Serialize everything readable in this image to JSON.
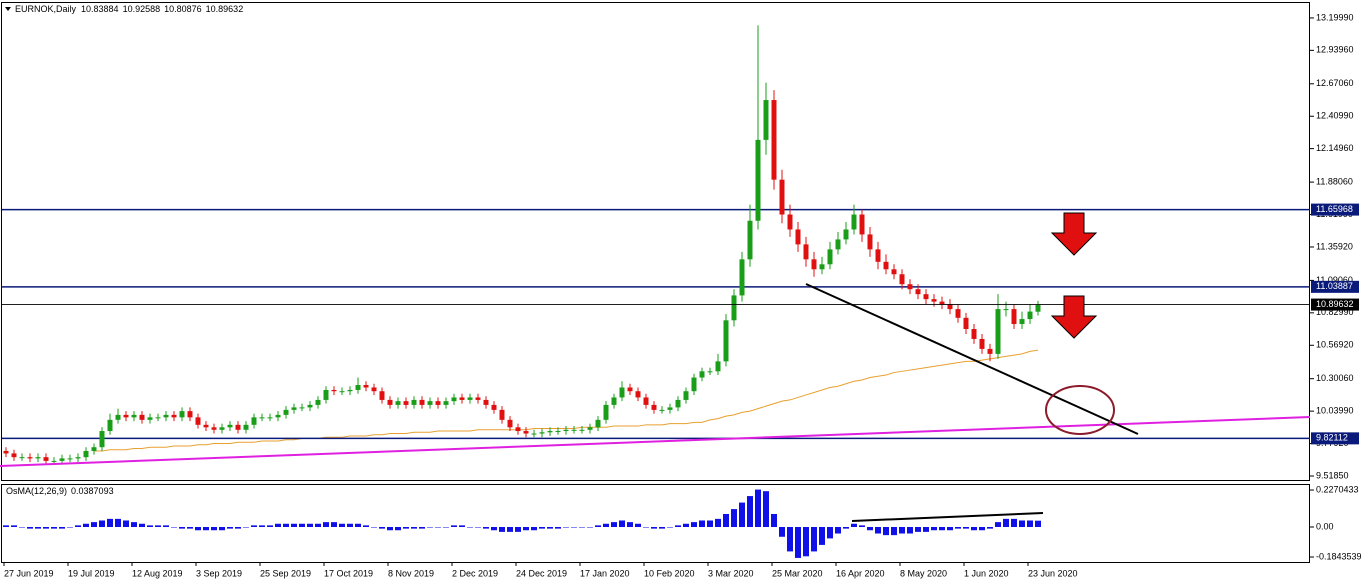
{
  "chart_data": [
    {
      "type": "candlestick",
      "title": "EURNOK,Daily",
      "categories": [
        "27 Jun 2019",
        null,
        null,
        null,
        null,
        null,
        null,
        null,
        "19 Jul 2019",
        null,
        null,
        null,
        null,
        null,
        null,
        null,
        "12 Aug 2019",
        null,
        null,
        null,
        null,
        null,
        null,
        null,
        "3 Sep 2019",
        null,
        null,
        null,
        null,
        null,
        null,
        null,
        "25 Sep 2019",
        null,
        null,
        null,
        null,
        null,
        null,
        null,
        "17 Oct 2019",
        null,
        null,
        null,
        null,
        null,
        null,
        null,
        "8 Nov 2019",
        null,
        null,
        null,
        null,
        null,
        null,
        null,
        "2 Dec 2019",
        null,
        null,
        null,
        null,
        null,
        null,
        null,
        "24 Dec 2019",
        null,
        null,
        null,
        null,
        null,
        null,
        null,
        "17 Jan 2020",
        null,
        null,
        null,
        null,
        null,
        null,
        null,
        "10 Feb 2020",
        null,
        null,
        null,
        null,
        null,
        null,
        null,
        "3 Mar 2020",
        null,
        null,
        null,
        null,
        null,
        null,
        null,
        "25 Mar 2020",
        null,
        null,
        null,
        null,
        null,
        null,
        null,
        "16 Apr 2020",
        null,
        null,
        null,
        null,
        null,
        null,
        null,
        "8 May 2020",
        null,
        null,
        null,
        null,
        null,
        null,
        null,
        "1 Jun 2020",
        null,
        null,
        null,
        null,
        null,
        null,
        null,
        "23 Jun 2020",
        null
      ],
      "open": [
        9.72,
        9.7,
        9.67,
        9.67,
        9.66,
        9.67,
        9.64,
        9.64,
        9.66,
        9.66,
        9.67,
        9.72,
        9.75,
        9.88,
        9.97,
        10.01,
        9.99,
        10.01,
        9.97,
        9.99,
        9.99,
        10.01,
        9.99,
        10.04,
        9.99,
        9.93,
        9.91,
        9.89,
        9.91,
        9.93,
        9.89,
        9.93,
        9.99,
        9.99,
        9.99,
        10.01,
        10.05,
        10.07,
        10.07,
        10.09,
        10.13,
        10.21,
        10.2,
        10.2,
        10.21,
        10.25,
        10.23,
        10.2,
        10.13,
        10.09,
        10.12,
        10.09,
        10.13,
        10.09,
        10.12,
        10.09,
        10.12,
        10.15,
        10.13,
        10.15,
        10.13,
        10.09,
        10.05,
        9.97,
        9.91,
        9.88,
        9.86,
        9.86,
        9.87,
        9.88,
        9.88,
        9.89,
        9.89,
        9.89,
        9.91,
        9.97,
        10.09,
        10.15,
        10.23,
        10.2,
        10.15,
        10.09,
        10.05,
        10.05,
        10.07,
        10.13,
        10.2,
        10.31,
        10.36,
        10.36,
        10.44,
        10.77,
        10.97,
        11.26,
        11.57,
        12.22,
        12.54,
        11.9,
        11.62,
        11.5,
        11.38,
        11.26,
        11.18,
        11.22,
        11.34,
        11.42,
        11.5,
        11.62,
        11.46,
        11.34,
        11.24,
        11.18,
        11.14,
        11.06,
        11.02,
        10.98,
        10.94,
        10.92,
        10.9,
        10.86,
        10.79,
        10.7,
        10.62,
        10.54,
        10.5,
        10.86,
        10.86,
        10.74,
        10.78,
        10.83884
      ],
      "high": [
        9.75,
        9.73,
        9.7,
        9.7,
        9.7,
        9.7,
        9.67,
        9.69,
        9.69,
        9.7,
        9.75,
        9.78,
        9.91,
        10.02,
        10.06,
        10.04,
        10.04,
        10.04,
        10.02,
        10.02,
        10.04,
        10.04,
        10.07,
        10.07,
        10.02,
        9.96,
        9.94,
        9.94,
        9.96,
        9.96,
        9.96,
        10.02,
        10.02,
        10.02,
        10.04,
        10.08,
        10.1,
        10.1,
        10.12,
        10.16,
        10.24,
        10.24,
        10.23,
        10.24,
        10.31,
        10.28,
        10.26,
        10.23,
        10.16,
        10.15,
        10.15,
        10.16,
        10.16,
        10.15,
        10.15,
        10.15,
        10.18,
        10.18,
        10.18,
        10.18,
        10.16,
        10.12,
        10.08,
        10.0,
        9.94,
        9.91,
        9.89,
        9.9,
        9.91,
        9.91,
        9.92,
        9.92,
        9.92,
        9.94,
        10.0,
        10.12,
        10.18,
        10.28,
        10.26,
        10.23,
        10.18,
        10.12,
        10.08,
        10.1,
        10.16,
        10.23,
        10.34,
        10.39,
        10.39,
        10.5,
        10.82,
        11.02,
        11.32,
        11.7,
        13.14,
        12.68,
        12.62,
        11.98,
        11.7,
        11.56,
        11.44,
        11.32,
        11.28,
        11.4,
        11.48,
        11.56,
        11.7,
        11.66,
        11.52,
        11.4,
        11.3,
        11.22,
        11.18,
        11.1,
        11.06,
        11.02,
        10.98,
        10.96,
        10.94,
        10.9,
        10.83,
        10.74,
        10.66,
        10.58,
        10.98,
        10.92,
        10.9,
        10.84,
        10.9,
        10.92588
      ],
      "low": [
        9.67,
        9.64,
        9.64,
        9.63,
        9.63,
        9.61,
        9.61,
        9.61,
        9.63,
        9.63,
        9.64,
        9.69,
        9.72,
        9.85,
        9.94,
        9.96,
        9.96,
        9.94,
        9.94,
        9.96,
        9.96,
        9.96,
        9.96,
        9.96,
        9.9,
        9.88,
        9.86,
        9.86,
        9.88,
        9.86,
        9.86,
        9.9,
        9.96,
        9.96,
        9.96,
        9.98,
        10.02,
        10.04,
        10.04,
        10.06,
        10.1,
        10.17,
        10.17,
        10.17,
        10.18,
        10.2,
        10.17,
        10.1,
        10.06,
        10.06,
        10.06,
        10.06,
        10.06,
        10.06,
        10.06,
        10.06,
        10.09,
        10.1,
        10.1,
        10.1,
        10.06,
        10.02,
        9.94,
        9.88,
        9.85,
        9.83,
        9.83,
        9.83,
        9.84,
        9.85,
        9.85,
        9.86,
        9.86,
        9.86,
        9.88,
        9.94,
        10.06,
        10.12,
        10.17,
        10.12,
        10.06,
        10.02,
        10.02,
        10.02,
        10.04,
        10.1,
        10.17,
        10.28,
        10.33,
        10.33,
        10.4,
        10.72,
        10.92,
        11.2,
        11.5,
        12.1,
        11.82,
        11.55,
        11.44,
        11.32,
        11.2,
        11.12,
        11.14,
        11.18,
        11.3,
        11.38,
        11.46,
        11.4,
        11.28,
        11.18,
        11.14,
        11.1,
        11.02,
        10.98,
        10.94,
        10.9,
        10.88,
        10.86,
        10.82,
        10.75,
        10.66,
        10.58,
        10.5,
        10.44,
        10.46,
        10.8,
        10.7,
        10.7,
        10.74,
        10.80876
      ],
      "close": [
        9.7,
        9.67,
        9.67,
        9.66,
        9.67,
        9.64,
        9.64,
        9.66,
        9.66,
        9.67,
        9.72,
        9.75,
        9.88,
        9.97,
        10.01,
        9.99,
        10.01,
        9.97,
        9.99,
        9.99,
        10.01,
        9.99,
        10.04,
        9.99,
        9.93,
        9.91,
        9.89,
        9.91,
        9.93,
        9.89,
        9.93,
        9.99,
        9.99,
        9.99,
        10.01,
        10.05,
        10.07,
        10.07,
        10.09,
        10.13,
        10.21,
        10.2,
        10.2,
        10.21,
        10.25,
        10.23,
        10.2,
        10.13,
        10.09,
        10.12,
        10.09,
        10.13,
        10.09,
        10.12,
        10.09,
        10.12,
        10.15,
        10.13,
        10.15,
        10.13,
        10.09,
        10.05,
        9.97,
        9.91,
        9.88,
        9.86,
        9.86,
        9.87,
        9.88,
        9.88,
        9.89,
        9.89,
        9.89,
        9.91,
        9.97,
        10.09,
        10.15,
        10.23,
        10.2,
        10.15,
        10.09,
        10.05,
        10.05,
        10.07,
        10.13,
        10.2,
        10.31,
        10.36,
        10.36,
        10.44,
        10.77,
        10.97,
        11.26,
        11.57,
        12.22,
        12.54,
        11.9,
        11.62,
        11.5,
        11.38,
        11.26,
        11.18,
        11.22,
        11.34,
        11.42,
        11.5,
        11.62,
        11.46,
        11.34,
        11.24,
        11.18,
        11.14,
        11.06,
        11.02,
        10.98,
        10.94,
        10.92,
        10.9,
        10.86,
        10.79,
        10.7,
        10.62,
        10.54,
        10.5,
        10.86,
        10.86,
        10.74,
        10.78,
        10.84,
        10.89632
      ],
      "up_color": "#1a9e1a",
      "down_color": "#e01010",
      "ma": {
        "color": "#e8a030",
        "values": [
          null,
          null,
          null,
          null,
          null,
          null,
          null,
          null,
          null,
          null,
          null,
          9.72,
          9.72,
          9.73,
          9.73,
          9.73,
          9.74,
          9.74,
          9.75,
          9.75,
          9.75,
          9.76,
          9.76,
          9.76,
          9.77,
          9.77,
          9.78,
          9.78,
          9.78,
          9.79,
          9.79,
          9.79,
          9.8,
          9.8,
          9.8,
          9.81,
          9.81,
          9.82,
          9.82,
          9.82,
          9.83,
          9.83,
          9.83,
          9.84,
          9.84,
          9.84,
          9.85,
          9.85,
          9.86,
          9.86,
          9.86,
          9.87,
          9.87,
          9.87,
          9.88,
          9.88,
          9.88,
          9.88,
          9.88,
          9.89,
          9.89,
          9.89,
          9.89,
          9.89,
          9.89,
          9.89,
          9.9,
          9.9,
          9.9,
          9.9,
          9.9,
          9.9,
          9.91,
          9.91,
          9.91,
          9.91,
          9.92,
          9.92,
          9.92,
          9.92,
          9.93,
          9.93,
          9.93,
          9.94,
          9.94,
          9.94,
          9.95,
          9.95,
          9.97,
          9.98,
          10.0,
          10.01,
          10.03,
          10.04,
          10.06,
          10.08,
          10.1,
          10.12,
          10.13,
          10.15,
          10.17,
          10.19,
          10.21,
          10.23,
          10.24,
          10.26,
          10.28,
          10.29,
          10.31,
          10.32,
          10.33,
          10.35,
          10.36,
          10.37,
          10.38,
          10.39,
          10.4,
          10.41,
          10.42,
          10.43,
          10.44,
          10.44,
          10.45,
          10.46,
          10.47,
          10.48,
          10.49,
          10.5,
          10.52,
          10.53
        ]
      },
      "levels": [
        {
          "value": 11.65968,
          "color": "#0a1a7a"
        },
        {
          "value": 11.03887,
          "color": "#0a1a7a"
        },
        {
          "value": 9.82112,
          "color": "#0a1a7a"
        }
      ],
      "current_price_color": "#000000",
      "ylim": [
        9.4865,
        13.32
      ],
      "yticks": [
        {
          "value": 13.1999,
          "label": "13.19990"
        },
        {
          "value": 12.9396,
          "label": "12.93960"
        },
        {
          "value": 12.6706,
          "label": "12.67060"
        },
        {
          "value": 12.4099,
          "label": "12.40990"
        },
        {
          "value": 12.1496,
          "label": "12.14960"
        },
        {
          "value": 11.8806,
          "label": "11.88060"
        },
        {
          "value": 11.6199,
          "label": "11.61990"
        },
        {
          "value": 11.3592,
          "label": "11.35920"
        },
        {
          "value": 11.0906,
          "label": "11.09060"
        },
        {
          "value": 10.8299,
          "label": "10.82990"
        },
        {
          "value": 10.5692,
          "label": "10.56920"
        },
        {
          "value": 10.3006,
          "label": "10.30060"
        },
        {
          "value": 10.0399,
          "label": "10.03990"
        },
        {
          "value": 9.7792,
          "label": "9.77920"
        },
        {
          "value": 9.5185,
          "label": "9.51850"
        }
      ]
    },
    {
      "type": "bar",
      "title": "OsMA(12,26,9)",
      "color": "#1010e8",
      "values": [
        0.01,
        0.01,
        0.0,
        -0.01,
        -0.01,
        -0.01,
        -0.01,
        -0.01,
        0.0,
        0.01,
        0.02,
        0.03,
        0.04,
        0.05,
        0.05,
        0.04,
        0.03,
        0.02,
        0.01,
        0.01,
        0.01,
        0.0,
        -0.01,
        -0.01,
        -0.02,
        -0.02,
        -0.02,
        -0.02,
        -0.01,
        -0.01,
        0.0,
        0.01,
        0.01,
        0.01,
        0.02,
        0.02,
        0.02,
        0.02,
        0.02,
        0.02,
        0.03,
        0.03,
        0.02,
        0.02,
        0.02,
        0.01,
        0.0,
        -0.01,
        -0.02,
        -0.02,
        -0.01,
        -0.01,
        -0.01,
        0.0,
        0.0,
        0.0,
        0.01,
        0.01,
        0.0,
        0.0,
        -0.01,
        -0.02,
        -0.03,
        -0.03,
        -0.03,
        -0.02,
        -0.02,
        -0.01,
        -0.01,
        -0.01,
        0.0,
        0.0,
        0.0,
        0.0,
        0.01,
        0.02,
        0.03,
        0.04,
        0.03,
        0.02,
        0.0,
        -0.01,
        -0.01,
        0.0,
        0.01,
        0.02,
        0.03,
        0.04,
        0.04,
        0.05,
        0.08,
        0.11,
        0.15,
        0.19,
        0.23,
        0.22,
        0.08,
        -0.06,
        -0.15,
        -0.19,
        -0.18,
        -0.15,
        -0.11,
        -0.07,
        -0.04,
        -0.01,
        0.02,
        0.01,
        -0.02,
        -0.04,
        -0.05,
        -0.05,
        -0.04,
        -0.04,
        -0.03,
        -0.03,
        -0.02,
        -0.02,
        -0.02,
        -0.01,
        -0.01,
        -0.02,
        -0.02,
        -0.01,
        0.03,
        0.05,
        0.05,
        0.04,
        0.04,
        0.0387093
      ],
      "ylim": [
        -0.215,
        0.258
      ],
      "yticks": [
        0.2270433,
        {
          "value": 0,
          "label": "0.00"
        },
        -0.1843539
      ]
    }
  ]
}
